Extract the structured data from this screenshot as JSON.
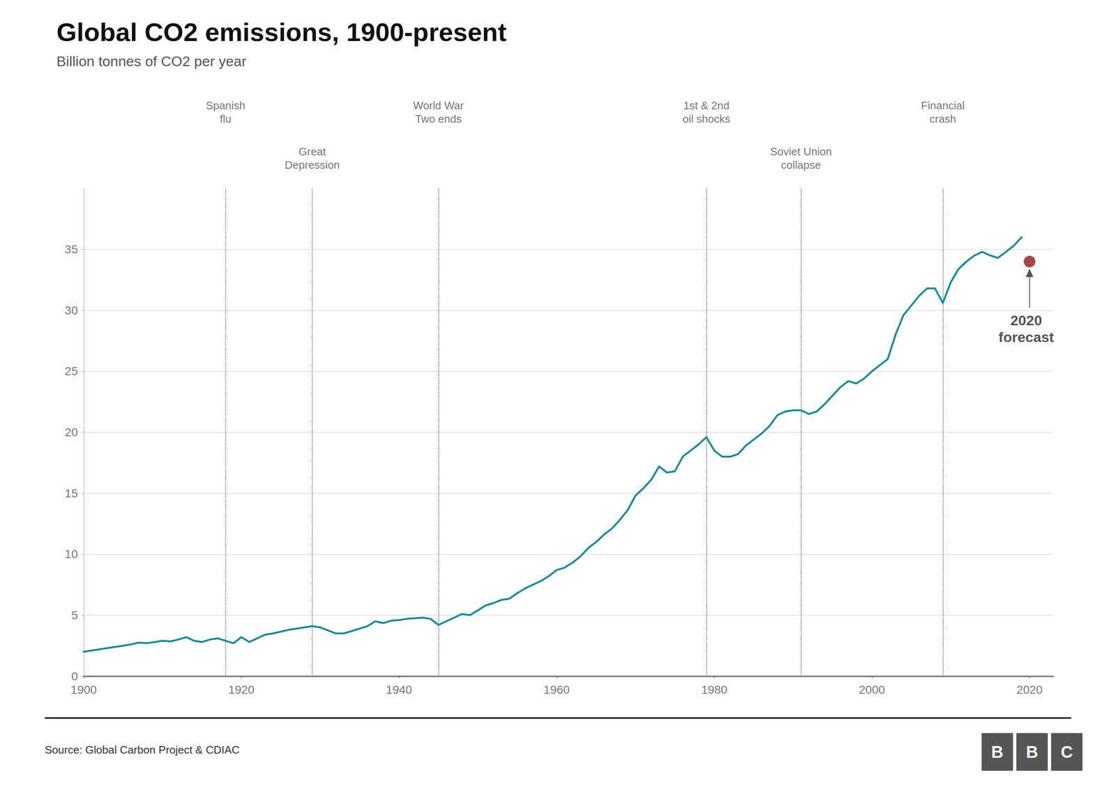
{
  "chart_data": {
    "type": "line",
    "title": "Global CO2 emissions, 1900-present",
    "subtitle": "Billion tonnes of CO2 per year",
    "source": "Source: Global Carbon Project & CDIAC",
    "logo": "BBC",
    "color": "#1a8a9a",
    "x": [
      1900,
      1901,
      1902,
      1903,
      1904,
      1905,
      1906,
      1907,
      1908,
      1909,
      1910,
      1911,
      1912,
      1913,
      1914,
      1915,
      1916,
      1917,
      1918,
      1919,
      1920,
      1921,
      1922,
      1923,
      1924,
      1925,
      1926,
      1927,
      1928,
      1929,
      1930,
      1931,
      1932,
      1933,
      1934,
      1935,
      1936,
      1937,
      1938,
      1939,
      1940,
      1941,
      1942,
      1943,
      1944,
      1945,
      1946,
      1947,
      1948,
      1949,
      1950,
      1951,
      1952,
      1953,
      1954,
      1955,
      1956,
      1957,
      1958,
      1959,
      1960,
      1961,
      1962,
      1963,
      1964,
      1965,
      1966,
      1967,
      1968,
      1969,
      1970,
      1971,
      1972,
      1973,
      1974,
      1975,
      1976,
      1977,
      1978,
      1979,
      1980,
      1981,
      1982,
      1983,
      1984,
      1985,
      1986,
      1987,
      1988,
      1989,
      1990,
      1991,
      1992,
      1993,
      1994,
      1995,
      1996,
      1997,
      1998,
      1999,
      2000,
      2001,
      2002,
      2003,
      2004,
      2005,
      2006,
      2007,
      2008,
      2009,
      2010,
      2011,
      2012,
      2013,
      2014,
      2015,
      2016,
      2017,
      2018,
      2019
    ],
    "values": [
      2.0,
      2.1,
      2.2,
      2.3,
      2.4,
      2.5,
      2.6,
      2.75,
      2.7,
      2.8,
      2.9,
      2.85,
      3.0,
      3.2,
      2.9,
      2.8,
      3.0,
      3.1,
      2.9,
      2.7,
      3.2,
      2.8,
      3.1,
      3.4,
      3.5,
      3.65,
      3.8,
      3.9,
      4.0,
      4.1,
      4.0,
      3.75,
      3.5,
      3.5,
      3.7,
      3.9,
      4.1,
      4.5,
      4.35,
      4.55,
      4.6,
      4.7,
      4.75,
      4.8,
      4.7,
      4.2,
      4.5,
      4.8,
      5.1,
      5.0,
      5.4,
      5.8,
      6.0,
      6.25,
      6.35,
      6.8,
      7.2,
      7.5,
      7.8,
      8.2,
      8.7,
      8.9,
      9.3,
      9.8,
      10.5,
      11.0,
      11.6,
      12.1,
      12.8,
      13.6,
      14.8,
      15.4,
      16.1,
      17.2,
      16.7,
      16.8,
      18.0,
      18.5,
      19.0,
      19.6,
      18.5,
      18.0,
      18.0,
      18.2,
      18.9,
      19.4,
      19.9,
      20.5,
      21.4,
      21.7,
      21.8,
      21.8,
      21.5,
      21.7,
      22.3,
      23.0,
      23.7,
      24.2,
      24.0,
      24.4,
      25.0,
      25.5,
      26.0,
      28.0,
      29.6,
      30.4,
      31.2,
      31.8,
      31.8,
      30.6,
      32.3,
      33.4,
      34.0,
      34.5,
      34.8,
      34.5,
      34.3,
      34.8,
      35.3,
      36.0
    ],
    "xlim": [
      1900,
      2023
    ],
    "xticks": [
      1900,
      1920,
      1940,
      1960,
      1980,
      2000,
      2020
    ],
    "ylim": [
      0,
      40
    ],
    "yticks": [
      0,
      5,
      10,
      15,
      20,
      25,
      30,
      35
    ],
    "grid": true,
    "forecast": {
      "x": 2020,
      "y": 34.0,
      "label": "2020\nforecast",
      "color": "#8b1a1a"
    },
    "upper_events": [
      {
        "x": 1918,
        "label": "Spanish\nflu"
      },
      {
        "x": 1945,
        "label": "World War\nTwo ends"
      },
      {
        "x": 1979,
        "label": "1st & 2nd\noil shocks"
      },
      {
        "x": 2009,
        "label": "Financial\ncrash"
      }
    ],
    "lower_events": [
      {
        "x": 1929,
        "label": "Great\nDepression"
      },
      {
        "x": 1991,
        "label": "Soviet Union\ncollapse"
      }
    ]
  }
}
